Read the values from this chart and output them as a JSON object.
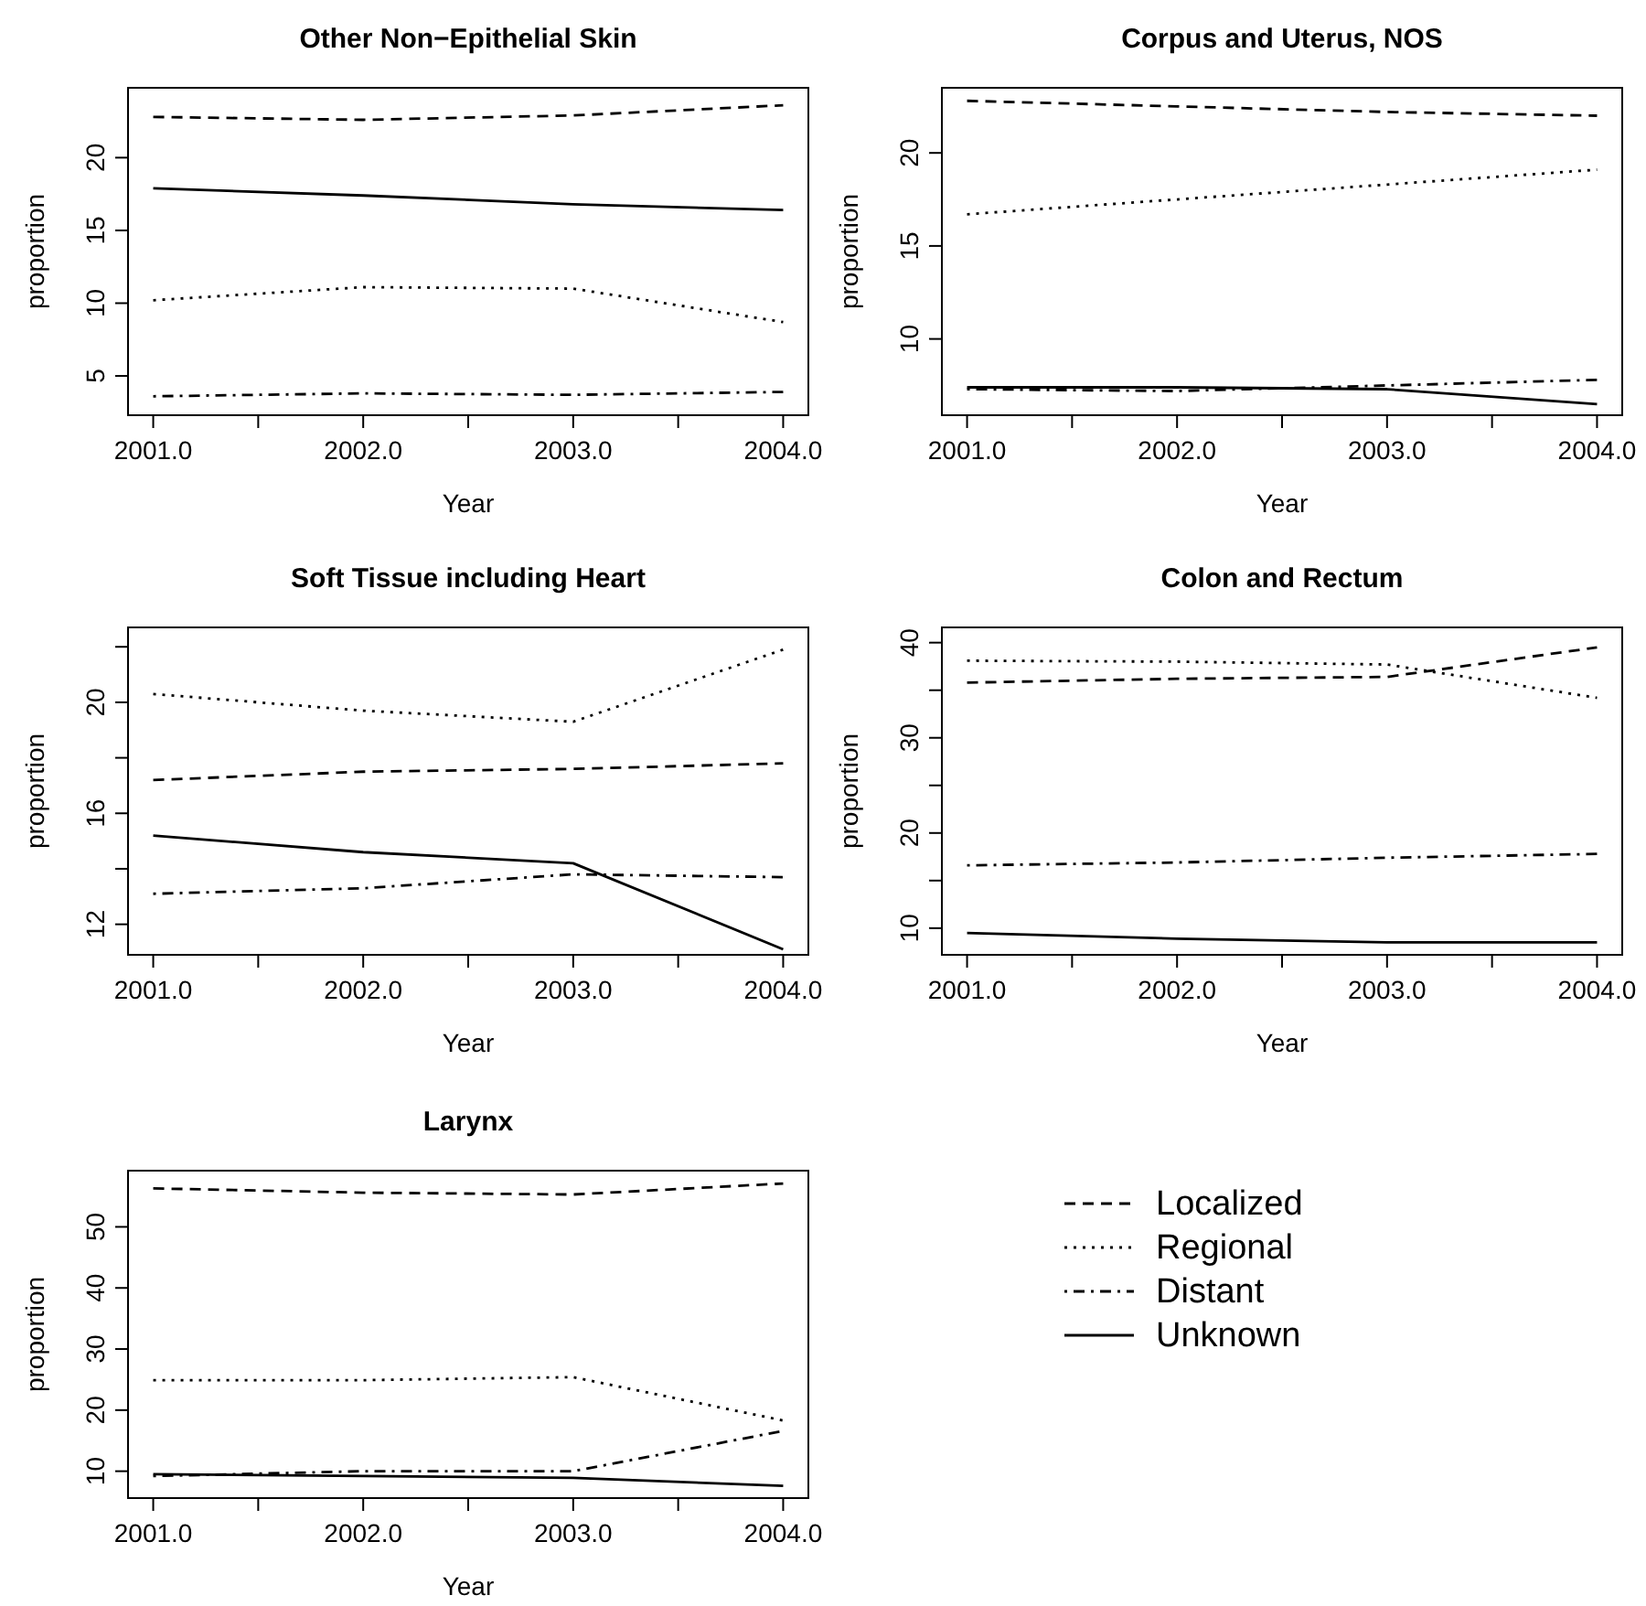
{
  "chart_data": [
    {
      "type": "line",
      "title": "Other Non−Epithelial Skin",
      "xlabel": "Year",
      "ylabel": "proportion",
      "x": [
        2001,
        2002,
        2003,
        2004
      ],
      "xlim": [
        2000.88,
        2004.12
      ],
      "ylim": [
        2.3,
        24.8
      ],
      "xticks": [
        {
          "value": 2001,
          "label": "2001.0"
        },
        {
          "value": 2001.5,
          "label": null
        },
        {
          "value": 2002,
          "label": "2002.0"
        },
        {
          "value": 2002.5,
          "label": null
        },
        {
          "value": 2003,
          "label": "2003.0"
        },
        {
          "value": 2003.5,
          "label": null
        },
        {
          "value": 2004,
          "label": "2004.0"
        }
      ],
      "yticks": [
        5,
        10,
        15,
        20
      ],
      "grid": false,
      "legend": false,
      "marker": "none",
      "series": [
        {
          "color": "#000000",
          "line_style": "dashed",
          "values": [
            22.8,
            22.6,
            22.9,
            23.6
          ]
        },
        {
          "color": "#000000",
          "line_style": "dotted",
          "values": [
            10.2,
            11.1,
            11.0,
            8.7
          ]
        },
        {
          "color": "#000000",
          "line_style": "dashdot",
          "values": [
            3.6,
            3.8,
            3.7,
            3.9
          ]
        },
        {
          "color": "#000000",
          "line_style": "solid",
          "values": [
            17.9,
            17.4,
            16.8,
            16.4
          ]
        }
      ]
    },
    {
      "type": "line",
      "title": "Corpus and Uterus, NOS",
      "xlabel": "Year",
      "ylabel": "proportion",
      "x": [
        2001,
        2002,
        2003,
        2004
      ],
      "xlim": [
        2000.88,
        2004.12
      ],
      "ylim": [
        5.9,
        23.5
      ],
      "xticks": [
        {
          "value": 2001,
          "label": "2001.0"
        },
        {
          "value": 2001.5,
          "label": null
        },
        {
          "value": 2002,
          "label": "2002.0"
        },
        {
          "value": 2002.5,
          "label": null
        },
        {
          "value": 2003,
          "label": "2003.0"
        },
        {
          "value": 2003.5,
          "label": null
        },
        {
          "value": 2004,
          "label": "2004.0"
        }
      ],
      "yticks": [
        10,
        15,
        20
      ],
      "grid": false,
      "legend": false,
      "marker": "none",
      "series": [
        {
          "color": "#000000",
          "line_style": "dashed",
          "values": [
            22.8,
            22.5,
            22.2,
            22.0
          ]
        },
        {
          "color": "#000000",
          "line_style": "dotted",
          "values": [
            16.7,
            17.5,
            18.3,
            19.1
          ]
        },
        {
          "color": "#000000",
          "line_style": "dashdot",
          "values": [
            7.3,
            7.2,
            7.5,
            7.8
          ]
        },
        {
          "color": "#000000",
          "line_style": "solid",
          "values": [
            7.4,
            7.4,
            7.3,
            6.5
          ]
        }
      ]
    },
    {
      "type": "line",
      "title": "Soft Tissue including Heart",
      "xlabel": "Year",
      "ylabel": "proportion",
      "x": [
        2001,
        2002,
        2003,
        2004
      ],
      "xlim": [
        2000.88,
        2004.12
      ],
      "ylim": [
        10.9,
        22.7
      ],
      "xticks": [
        {
          "value": 2001,
          "label": "2001.0"
        },
        {
          "value": 2001.5,
          "label": null
        },
        {
          "value": 2002,
          "label": "2002.0"
        },
        {
          "value": 2002.5,
          "label": null
        },
        {
          "value": 2003,
          "label": "2003.0"
        },
        {
          "value": 2003.5,
          "label": null
        },
        {
          "value": 2004,
          "label": "2004.0"
        }
      ],
      "yticks": [
        12,
        {
          "value": 14,
          "label": null
        },
        16,
        {
          "value": 18,
          "label": null
        },
        20,
        {
          "value": 22,
          "label": null
        }
      ],
      "grid": false,
      "legend": false,
      "marker": "none",
      "series": [
        {
          "color": "#000000",
          "line_style": "dashed",
          "values": [
            17.2,
            17.5,
            17.6,
            17.8
          ]
        },
        {
          "color": "#000000",
          "line_style": "dotted",
          "values": [
            20.3,
            19.7,
            19.3,
            21.9
          ]
        },
        {
          "color": "#000000",
          "line_style": "dashdot",
          "values": [
            13.1,
            13.3,
            13.8,
            13.7
          ]
        },
        {
          "color": "#000000",
          "line_style": "solid",
          "values": [
            15.2,
            14.6,
            14.2,
            11.1
          ]
        }
      ]
    },
    {
      "type": "line",
      "title": "Colon and Rectum",
      "xlabel": "Year",
      "ylabel": "proportion",
      "x": [
        2001,
        2002,
        2003,
        2004
      ],
      "xlim": [
        2000.88,
        2004.12
      ],
      "ylim": [
        7.2,
        41.6
      ],
      "xticks": [
        {
          "value": 2001,
          "label": "2001.0"
        },
        {
          "value": 2001.5,
          "label": null
        },
        {
          "value": 2002,
          "label": "2002.0"
        },
        {
          "value": 2002.5,
          "label": null
        },
        {
          "value": 2003,
          "label": "2003.0"
        },
        {
          "value": 2003.5,
          "label": null
        },
        {
          "value": 2004,
          "label": "2004.0"
        }
      ],
      "yticks": [
        10,
        {
          "value": 15,
          "label": null
        },
        20,
        {
          "value": 25,
          "label": null
        },
        30,
        {
          "value": 35,
          "label": null
        },
        40
      ],
      "grid": false,
      "legend": false,
      "marker": "none",
      "series": [
        {
          "color": "#000000",
          "line_style": "dashed",
          "values": [
            35.8,
            36.2,
            36.4,
            39.5
          ]
        },
        {
          "color": "#000000",
          "line_style": "dotted",
          "values": [
            38.1,
            38.0,
            37.7,
            34.2
          ]
        },
        {
          "color": "#000000",
          "line_style": "dashdot",
          "values": [
            16.6,
            16.9,
            17.4,
            17.8
          ]
        },
        {
          "color": "#000000",
          "line_style": "solid",
          "values": [
            9.5,
            8.9,
            8.5,
            8.5
          ]
        }
      ]
    },
    {
      "type": "line",
      "title": "Larynx",
      "xlabel": "Year",
      "ylabel": "proportion",
      "x": [
        2001,
        2002,
        2003,
        2004
      ],
      "xlim": [
        2000.88,
        2004.12
      ],
      "ylim": [
        5.6,
        59.2
      ],
      "xticks": [
        {
          "value": 2001,
          "label": "2001.0"
        },
        {
          "value": 2001.5,
          "label": null
        },
        {
          "value": 2002,
          "label": "2002.0"
        },
        {
          "value": 2002.5,
          "label": null
        },
        {
          "value": 2003,
          "label": "2003.0"
        },
        {
          "value": 2003.5,
          "label": null
        },
        {
          "value": 2004,
          "label": "2004.0"
        }
      ],
      "yticks": [
        10,
        20,
        30,
        40,
        50
      ],
      "grid": false,
      "legend": "right",
      "marker": "none",
      "series": [
        {
          "name": "Localized",
          "color": "#000000",
          "line_style": "dashed",
          "values": [
            56.3,
            55.6,
            55.3,
            57.1
          ]
        },
        {
          "name": "Regional",
          "color": "#000000",
          "line_style": "dotted",
          "values": [
            24.9,
            24.9,
            25.4,
            18.3
          ]
        },
        {
          "name": "Distant",
          "color": "#000000",
          "line_style": "dashdot",
          "values": [
            9.2,
            10.0,
            10.0,
            16.6
          ]
        },
        {
          "name": "Unknown",
          "color": "#000000",
          "line_style": "solid",
          "values": [
            9.5,
            9.2,
            8.9,
            7.6
          ]
        }
      ]
    }
  ]
}
